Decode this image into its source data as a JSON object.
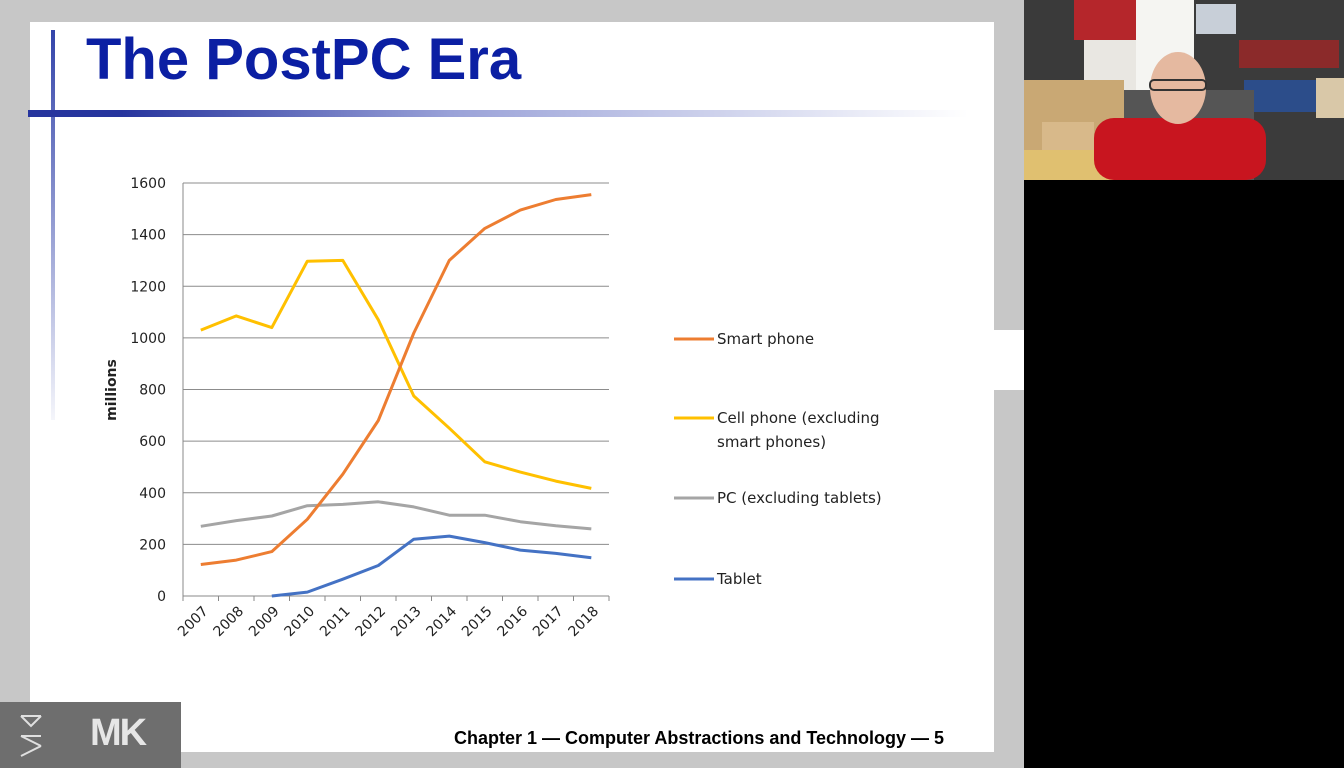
{
  "slide": {
    "title": "The PostPC Era",
    "footer": "Chapter 1 — Computer Abstractions and Technology — 5"
  },
  "logo": {
    "text": "MK"
  },
  "chart_data": {
    "type": "line",
    "categories": [
      "2007",
      "2008",
      "2009",
      "2010",
      "2011",
      "2012",
      "2013",
      "2014",
      "2015",
      "2016",
      "2017",
      "2018"
    ],
    "ylabel": "millions",
    "ylim": [
      0,
      1600
    ],
    "yticks": [
      "0",
      "200",
      "400",
      "600",
      "800",
      "1000",
      "1200",
      "1400",
      "1600"
    ],
    "grid": true,
    "legend_position": "right",
    "series": [
      {
        "name": "Smart phone",
        "color": "#ed7d31",
        "values": [
          122,
          139,
          172,
          297,
          472,
          680,
          1019,
          1300,
          1424,
          1495,
          1536,
          1555
        ]
      },
      {
        "name": "Cell phone (excluding smart phones)",
        "color": "#ffc000",
        "values": [
          1030,
          1085,
          1040,
          1297,
          1300,
          1070,
          775,
          650,
          520,
          480,
          445,
          417
        ]
      },
      {
        "name": "PC (excluding tablets)",
        "color": "#a5a5a5",
        "values": [
          270,
          292,
          310,
          350,
          355,
          365,
          345,
          313,
          313,
          288,
          272,
          260
        ]
      },
      {
        "name": "Tablet",
        "color": "#4472c4",
        "values": [
          null,
          null,
          0,
          15,
          65,
          118,
          220,
          232,
          207,
          178,
          165,
          148
        ]
      }
    ]
  },
  "legend_lines": {
    "smart": [
      "Smart phone"
    ],
    "cell": [
      "Cell phone (excluding",
      "smart phones)"
    ],
    "pc": [
      "PC (excluding tablets)"
    ],
    "tablet": [
      "Tablet"
    ]
  }
}
